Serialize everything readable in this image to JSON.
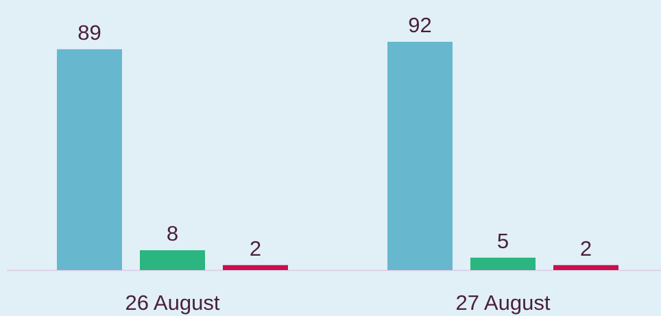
{
  "chart_data": {
    "type": "bar",
    "categories": [
      "26 August",
      "27 August"
    ],
    "series": [
      {
        "color": "#67b8cf",
        "values": [
          89,
          92
        ]
      },
      {
        "color": "#2bb580",
        "values": [
          8,
          5
        ]
      },
      {
        "color": "#c8104e",
        "values": [
          2,
          2
        ]
      }
    ]
  }
}
